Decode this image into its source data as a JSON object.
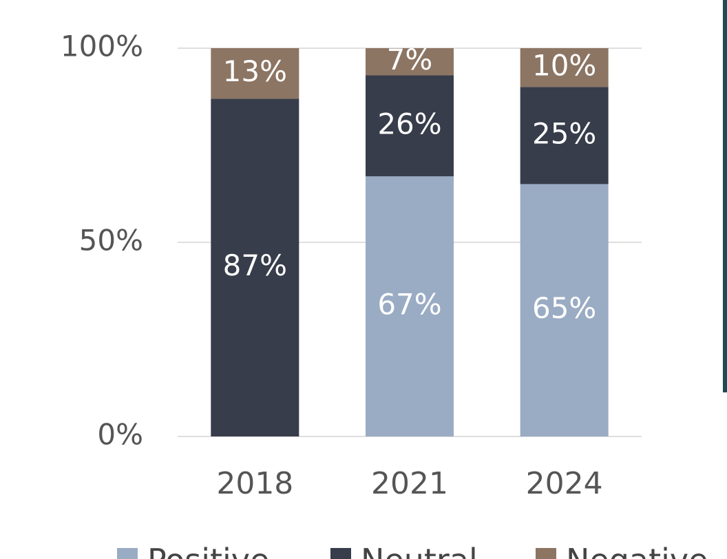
{
  "chart_data": {
    "type": "stacked_bar",
    "categories": [
      "2018",
      "2021",
      "2024"
    ],
    "series": [
      {
        "name": "Positive",
        "color": "#9aabc4",
        "values": [
          0,
          67,
          65
        ],
        "value_labels": [
          null,
          "67%",
          "65%"
        ]
      },
      {
        "name": "Neutral",
        "color": "#373d4a",
        "values": [
          87,
          26,
          25
        ],
        "value_labels": [
          "87%",
          "26%",
          "25%"
        ]
      },
      {
        "name": "Negative",
        "color": "#8c7563",
        "values": [
          13,
          7,
          10
        ],
        "value_labels": [
          "13%",
          "7%",
          "10%"
        ]
      }
    ],
    "ylim": [
      0,
      100
    ],
    "yticks": [
      {
        "value": 0,
        "label": "0%"
      },
      {
        "value": 50,
        "label": "50%"
      },
      {
        "value": 100,
        "label": "100%"
      }
    ],
    "grid": true,
    "legend": "bottom"
  }
}
